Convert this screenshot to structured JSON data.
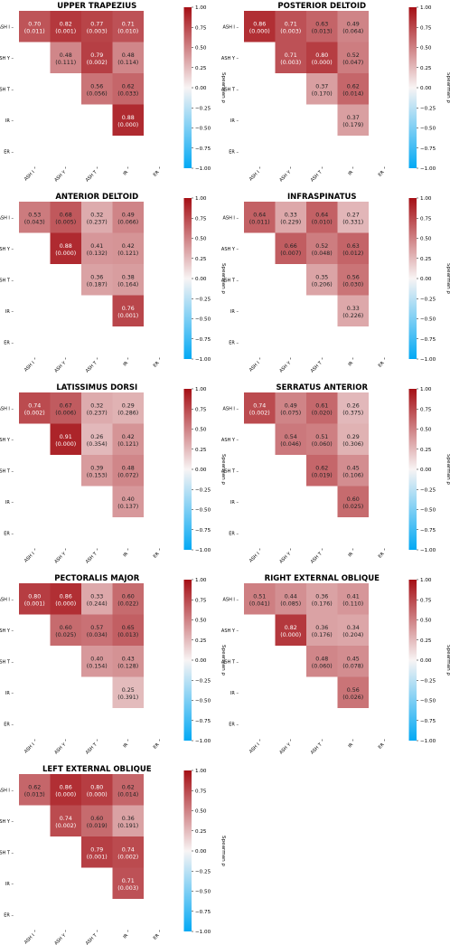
{
  "chart_data": [
    {
      "type": "heatmap",
      "title": "UPPER TRAPEZIUS",
      "rows": [
        "ASH I",
        "ASH Y",
        "ASH T",
        "IR",
        "ER"
      ],
      "cols": [
        "ASH I",
        "ASH Y",
        "ASH T",
        "IR",
        "ER"
      ],
      "cells": [
        {
          "r": 0,
          "c": 0,
          "rho": 0.7,
          "rho_label": "0.70",
          "p_label": "(0.011)"
        },
        {
          "r": 0,
          "c": 1,
          "rho": 0.82,
          "rho_label": "0.82",
          "p_label": "(0.001)"
        },
        {
          "r": 0,
          "c": 2,
          "rho": 0.77,
          "rho_label": "0.77",
          "p_label": "(0.003)"
        },
        {
          "r": 0,
          "c": 3,
          "rho": 0.71,
          "rho_label": "0.71",
          "p_label": "(0.010)"
        },
        {
          "r": 1,
          "c": 1,
          "rho": 0.48,
          "rho_label": "0.48",
          "p_label": "(0.111)"
        },
        {
          "r": 1,
          "c": 2,
          "rho": 0.79,
          "rho_label": "0.79",
          "p_label": "(0.002)"
        },
        {
          "r": 1,
          "c": 3,
          "rho": 0.48,
          "rho_label": "0.48",
          "p_label": "(0.114)"
        },
        {
          "r": 2,
          "c": 2,
          "rho": 0.56,
          "rho_label": "0.56",
          "p_label": "(0.056)"
        },
        {
          "r": 2,
          "c": 3,
          "rho": 0.62,
          "rho_label": "0.62",
          "p_label": "(0.033)"
        },
        {
          "r": 3,
          "c": 3,
          "rho": 0.88,
          "rho_label": "0.88",
          "p_label": "(0.000)"
        }
      ],
      "colorbar": {
        "label": "Spearman ρ",
        "ticks": [
          "1.00",
          "0.75",
          "0.50",
          "0.25",
          "0.00",
          "−0.25",
          "−0.50",
          "−0.75",
          "−1.00"
        ],
        "vmin": -1,
        "vmax": 1
      }
    },
    {
      "type": "heatmap",
      "title": "POSTERIOR DELTOID",
      "rows": [
        "ASH I",
        "ASH Y",
        "ASH T",
        "IR",
        "ER"
      ],
      "cols": [
        "ASH I",
        "ASH Y",
        "ASH T",
        "IR",
        "ER"
      ],
      "cells": [
        {
          "r": 0,
          "c": 0,
          "rho": 0.86,
          "rho_label": "0.86",
          "p_label": "(0.000)"
        },
        {
          "r": 0,
          "c": 1,
          "rho": 0.71,
          "rho_label": "0.71",
          "p_label": "(0.003)"
        },
        {
          "r": 0,
          "c": 2,
          "rho": 0.63,
          "rho_label": "0.63",
          "p_label": "(0.013)"
        },
        {
          "r": 0,
          "c": 3,
          "rho": 0.49,
          "rho_label": "0.49",
          "p_label": "(0.064)"
        },
        {
          "r": 1,
          "c": 1,
          "rho": 0.71,
          "rho_label": "0.71",
          "p_label": "(0.003)"
        },
        {
          "r": 1,
          "c": 2,
          "rho": 0.8,
          "rho_label": "0.80",
          "p_label": "(0.000)"
        },
        {
          "r": 1,
          "c": 3,
          "rho": 0.52,
          "rho_label": "0.52",
          "p_label": "(0.047)"
        },
        {
          "r": 2,
          "c": 2,
          "rho": 0.37,
          "rho_label": "0.37",
          "p_label": "(0.170)"
        },
        {
          "r": 2,
          "c": 3,
          "rho": 0.62,
          "rho_label": "0.62",
          "p_label": "(0.014)"
        },
        {
          "r": 3,
          "c": 3,
          "rho": 0.37,
          "rho_label": "0.37",
          "p_label": "(0.179)"
        }
      ],
      "colorbar": {
        "label": "Spearman ρ",
        "ticks": [
          "1.00",
          "0.75",
          "0.50",
          "0.25",
          "0.00",
          "−0.25",
          "−0.50",
          "−0.75",
          "−1.00"
        ],
        "vmin": -1,
        "vmax": 1
      }
    },
    {
      "type": "heatmap",
      "title": "ANTERIOR DELTOID",
      "rows": [
        "ASH I",
        "ASH Y",
        "ASH T",
        "IR",
        "ER"
      ],
      "cols": [
        "ASH I",
        "ASH Y",
        "ASH T",
        "IR",
        "ER"
      ],
      "cells": [
        {
          "r": 0,
          "c": 0,
          "rho": 0.53,
          "rho_label": "0.53",
          "p_label": "(0.043)"
        },
        {
          "r": 0,
          "c": 1,
          "rho": 0.68,
          "rho_label": "0.68",
          "p_label": "(0.005)"
        },
        {
          "r": 0,
          "c": 2,
          "rho": 0.32,
          "rho_label": "0.32",
          "p_label": "(0.237)"
        },
        {
          "r": 0,
          "c": 3,
          "rho": 0.49,
          "rho_label": "0.49",
          "p_label": "(0.066)"
        },
        {
          "r": 1,
          "c": 1,
          "rho": 0.88,
          "rho_label": "0.88",
          "p_label": "(0.000)"
        },
        {
          "r": 1,
          "c": 2,
          "rho": 0.41,
          "rho_label": "0.41",
          "p_label": "(0.132)"
        },
        {
          "r": 1,
          "c": 3,
          "rho": 0.42,
          "rho_label": "0.42",
          "p_label": "(0.121)"
        },
        {
          "r": 2,
          "c": 2,
          "rho": 0.36,
          "rho_label": "0.36",
          "p_label": "(0.187)"
        },
        {
          "r": 2,
          "c": 3,
          "rho": 0.38,
          "rho_label": "0.38",
          "p_label": "(0.164)"
        },
        {
          "r": 3,
          "c": 3,
          "rho": 0.76,
          "rho_label": "0.76",
          "p_label": "(0.001)"
        }
      ],
      "colorbar": {
        "label": "Spearman ρ",
        "ticks": [
          "1.00",
          "0.75",
          "0.50",
          "0.25",
          "0.00",
          "−0.25",
          "−0.50",
          "−0.75",
          "−1.00"
        ],
        "vmin": -1,
        "vmax": 1
      }
    },
    {
      "type": "heatmap",
      "title": "INFRASPINATUS",
      "rows": [
        "ASH I",
        "ASH Y",
        "ASH T",
        "IR",
        "ER"
      ],
      "cols": [
        "ASH I",
        "ASH Y",
        "ASH T",
        "IR",
        "ER"
      ],
      "cells": [
        {
          "r": 0,
          "c": 0,
          "rho": 0.64,
          "rho_label": "0.64",
          "p_label": "(0.011)"
        },
        {
          "r": 0,
          "c": 1,
          "rho": 0.33,
          "rho_label": "0.33",
          "p_label": "(0.229)"
        },
        {
          "r": 0,
          "c": 2,
          "rho": 0.64,
          "rho_label": "0.64",
          "p_label": "(0.010)"
        },
        {
          "r": 0,
          "c": 3,
          "rho": 0.27,
          "rho_label": "0.27",
          "p_label": "(0.331)"
        },
        {
          "r": 1,
          "c": 1,
          "rho": 0.66,
          "rho_label": "0.66",
          "p_label": "(0.007)"
        },
        {
          "r": 1,
          "c": 2,
          "rho": 0.52,
          "rho_label": "0.52",
          "p_label": "(0.048)"
        },
        {
          "r": 1,
          "c": 3,
          "rho": 0.63,
          "rho_label": "0.63",
          "p_label": "(0.012)"
        },
        {
          "r": 2,
          "c": 2,
          "rho": 0.35,
          "rho_label": "0.35",
          "p_label": "(0.206)"
        },
        {
          "r": 2,
          "c": 3,
          "rho": 0.56,
          "rho_label": "0.56",
          "p_label": "(0.030)"
        },
        {
          "r": 3,
          "c": 3,
          "rho": 0.33,
          "rho_label": "0.33",
          "p_label": "(0.226)"
        }
      ],
      "colorbar": {
        "label": "Spearman ρ",
        "ticks": [
          "1.00",
          "0.75",
          "0.50",
          "0.25",
          "0.00",
          "−0.25",
          "−0.50",
          "−0.75",
          "−1.00"
        ],
        "vmin": -1,
        "vmax": 1
      }
    },
    {
      "type": "heatmap",
      "title": "LATISSIMUS DORSI",
      "rows": [
        "ASH I",
        "ASH Y",
        "ASH T",
        "IR",
        "ER"
      ],
      "cols": [
        "ASH I",
        "ASH Y",
        "ASH T",
        "IR",
        "ER"
      ],
      "cells": [
        {
          "r": 0,
          "c": 0,
          "rho": 0.74,
          "rho_label": "0.74",
          "p_label": "(0.002)"
        },
        {
          "r": 0,
          "c": 1,
          "rho": 0.67,
          "rho_label": "0.67",
          "p_label": "(0.006)"
        },
        {
          "r": 0,
          "c": 2,
          "rho": 0.32,
          "rho_label": "0.32",
          "p_label": "(0.237)"
        },
        {
          "r": 0,
          "c": 3,
          "rho": 0.29,
          "rho_label": "0.29",
          "p_label": "(0.286)"
        },
        {
          "r": 1,
          "c": 1,
          "rho": 0.91,
          "rho_label": "0.91",
          "p_label": "(0.000)"
        },
        {
          "r": 1,
          "c": 2,
          "rho": 0.26,
          "rho_label": "0.26",
          "p_label": "(0.354)"
        },
        {
          "r": 1,
          "c": 3,
          "rho": 0.42,
          "rho_label": "0.42",
          "p_label": "(0.121)"
        },
        {
          "r": 2,
          "c": 2,
          "rho": 0.39,
          "rho_label": "0.39",
          "p_label": "(0.153)"
        },
        {
          "r": 2,
          "c": 3,
          "rho": 0.48,
          "rho_label": "0.48",
          "p_label": "(0.072)"
        },
        {
          "r": 3,
          "c": 3,
          "rho": 0.4,
          "rho_label": "0.40",
          "p_label": "(0.137)"
        }
      ],
      "colorbar": {
        "label": "Spearman ρ",
        "ticks": [
          "1.00",
          "0.75",
          "0.50",
          "0.25",
          "0.00",
          "−0.25",
          "−0.50",
          "−0.75",
          "−1.00"
        ],
        "vmin": -1,
        "vmax": 1
      }
    },
    {
      "type": "heatmap",
      "title": "SERRATUS ANTERIOR",
      "rows": [
        "ASH I",
        "ASH Y",
        "ASH T",
        "IR",
        "ER"
      ],
      "cols": [
        "ASH I",
        "ASH Y",
        "ASH T",
        "IR",
        "ER"
      ],
      "cells": [
        {
          "r": 0,
          "c": 0,
          "rho": 0.74,
          "rho_label": "0.74",
          "p_label": "(0.002)"
        },
        {
          "r": 0,
          "c": 1,
          "rho": 0.49,
          "rho_label": "0.49",
          "p_label": "(0.075)"
        },
        {
          "r": 0,
          "c": 2,
          "rho": 0.61,
          "rho_label": "0.61",
          "p_label": "(0.020)"
        },
        {
          "r": 0,
          "c": 3,
          "rho": 0.26,
          "rho_label": "0.26",
          "p_label": "(0.375)"
        },
        {
          "r": 1,
          "c": 1,
          "rho": 0.54,
          "rho_label": "0.54",
          "p_label": "(0.046)"
        },
        {
          "r": 1,
          "c": 2,
          "rho": 0.51,
          "rho_label": "0.51",
          "p_label": "(0.060)"
        },
        {
          "r": 1,
          "c": 3,
          "rho": 0.29,
          "rho_label": "0.29",
          "p_label": "(0.306)"
        },
        {
          "r": 2,
          "c": 2,
          "rho": 0.62,
          "rho_label": "0.62",
          "p_label": "(0.019)"
        },
        {
          "r": 2,
          "c": 3,
          "rho": 0.45,
          "rho_label": "0.45",
          "p_label": "(0.106)"
        },
        {
          "r": 3,
          "c": 3,
          "rho": 0.6,
          "rho_label": "0.60",
          "p_label": "(0.025)"
        }
      ],
      "colorbar": {
        "label": "Spearman ρ",
        "ticks": [
          "1.00",
          "0.75",
          "0.50",
          "0.25",
          "0.00",
          "−0.25",
          "−0.50",
          "−0.75",
          "−1.00"
        ],
        "vmin": -1,
        "vmax": 1
      }
    },
    {
      "type": "heatmap",
      "title": "PECTORALIS MAJOR",
      "rows": [
        "ASH I",
        "ASH Y",
        "ASH T",
        "IR",
        "ER"
      ],
      "cols": [
        "ASH I",
        "ASH Y",
        "ASH T",
        "IR",
        "ER"
      ],
      "cells": [
        {
          "r": 0,
          "c": 0,
          "rho": 0.8,
          "rho_label": "0.80",
          "p_label": "(0.001)"
        },
        {
          "r": 0,
          "c": 1,
          "rho": 0.86,
          "rho_label": "0.86",
          "p_label": "(0.000)"
        },
        {
          "r": 0,
          "c": 2,
          "rho": 0.33,
          "rho_label": "0.33",
          "p_label": "(0.244)"
        },
        {
          "r": 0,
          "c": 3,
          "rho": 0.6,
          "rho_label": "0.60",
          "p_label": "(0.022)"
        },
        {
          "r": 1,
          "c": 1,
          "rho": 0.6,
          "rho_label": "0.60",
          "p_label": "(0.025)"
        },
        {
          "r": 1,
          "c": 2,
          "rho": 0.57,
          "rho_label": "0.57",
          "p_label": "(0.034)"
        },
        {
          "r": 1,
          "c": 3,
          "rho": 0.65,
          "rho_label": "0.65",
          "p_label": "(0.013)"
        },
        {
          "r": 2,
          "c": 2,
          "rho": 0.4,
          "rho_label": "0.40",
          "p_label": "(0.154)"
        },
        {
          "r": 2,
          "c": 3,
          "rho": 0.43,
          "rho_label": "0.43",
          "p_label": "(0.128)"
        },
        {
          "r": 3,
          "c": 3,
          "rho": 0.25,
          "rho_label": "0.25",
          "p_label": "(0.391)"
        }
      ],
      "colorbar": {
        "label": "Spearman ρ",
        "ticks": [
          "1.00",
          "0.75",
          "0.50",
          "0.25",
          "0.00",
          "−0.25",
          "−0.50",
          "−0.75",
          "−1.00"
        ],
        "vmin": -1,
        "vmax": 1
      }
    },
    {
      "type": "heatmap",
      "title": "RIGHT EXTERNAL OBLIQUE",
      "rows": [
        "ASH I",
        "ASH Y",
        "ASH T",
        "IR",
        "ER"
      ],
      "cols": [
        "ASH I",
        "ASH Y",
        "ASH T",
        "IR",
        "ER"
      ],
      "cells": [
        {
          "r": 0,
          "c": 0,
          "rho": 0.51,
          "rho_label": "0.51",
          "p_label": "(0.041)"
        },
        {
          "r": 0,
          "c": 1,
          "rho": 0.44,
          "rho_label": "0.44",
          "p_label": "(0.085)"
        },
        {
          "r": 0,
          "c": 2,
          "rho": 0.36,
          "rho_label": "0.36",
          "p_label": "(0.176)"
        },
        {
          "r": 0,
          "c": 3,
          "rho": 0.41,
          "rho_label": "0.41",
          "p_label": "(0.110)"
        },
        {
          "r": 1,
          "c": 1,
          "rho": 0.82,
          "rho_label": "0.82",
          "p_label": "(0.000)"
        },
        {
          "r": 1,
          "c": 2,
          "rho": 0.36,
          "rho_label": "0.36",
          "p_label": "(0.176)"
        },
        {
          "r": 1,
          "c": 3,
          "rho": 0.34,
          "rho_label": "0.34",
          "p_label": "(0.204)"
        },
        {
          "r": 2,
          "c": 2,
          "rho": 0.48,
          "rho_label": "0.48",
          "p_label": "(0.060)"
        },
        {
          "r": 2,
          "c": 3,
          "rho": 0.45,
          "rho_label": "0.45",
          "p_label": "(0.078)"
        },
        {
          "r": 3,
          "c": 3,
          "rho": 0.56,
          "rho_label": "0.56",
          "p_label": "(0.026)"
        }
      ],
      "colorbar": {
        "label": "Spearman ρ",
        "ticks": [
          "1.00",
          "0.75",
          "0.50",
          "0.25",
          "0.00",
          "−0.25",
          "−0.50",
          "−0.75",
          "−1.00"
        ],
        "vmin": -1,
        "vmax": 1
      }
    },
    {
      "type": "heatmap",
      "title": "LEFT EXTERNAL OBLIQUE",
      "rows": [
        "ASH I",
        "ASH Y",
        "ASH T",
        "IR",
        "ER"
      ],
      "cols": [
        "ASH I",
        "ASH Y",
        "ASH T",
        "IR",
        "ER"
      ],
      "cells": [
        {
          "r": 0,
          "c": 0,
          "rho": 0.62,
          "rho_label": "0.62",
          "p_label": "(0.013)"
        },
        {
          "r": 0,
          "c": 1,
          "rho": 0.86,
          "rho_label": "0.86",
          "p_label": "(0.000)"
        },
        {
          "r": 0,
          "c": 2,
          "rho": 0.8,
          "rho_label": "0.80",
          "p_label": "(0.000)"
        },
        {
          "r": 0,
          "c": 3,
          "rho": 0.62,
          "rho_label": "0.62",
          "p_label": "(0.014)"
        },
        {
          "r": 1,
          "c": 1,
          "rho": 0.74,
          "rho_label": "0.74",
          "p_label": "(0.002)"
        },
        {
          "r": 1,
          "c": 2,
          "rho": 0.6,
          "rho_label": "0.60",
          "p_label": "(0.019)"
        },
        {
          "r": 1,
          "c": 3,
          "rho": 0.36,
          "rho_label": "0.36",
          "p_label": "(0.191)"
        },
        {
          "r": 2,
          "c": 2,
          "rho": 0.79,
          "rho_label": "0.79",
          "p_label": "(0.001)"
        },
        {
          "r": 2,
          "c": 3,
          "rho": 0.74,
          "rho_label": "0.74",
          "p_label": "(0.002)"
        },
        {
          "r": 3,
          "c": 3,
          "rho": 0.71,
          "rho_label": "0.71",
          "p_label": "(0.003)"
        }
      ],
      "colorbar": {
        "label": "Spearman ρ",
        "ticks": [
          "1.00",
          "0.75",
          "0.50",
          "0.25",
          "0.00",
          "−0.25",
          "−0.50",
          "−0.75",
          "−1.00"
        ],
        "vmin": -1,
        "vmax": 1
      }
    }
  ],
  "colors": {
    "positive_max": "#a50f15",
    "neutral": "#f8f4f4",
    "negative_max": "#03a9f4",
    "text_dark": "#222222",
    "text_light": "#ffffff"
  }
}
